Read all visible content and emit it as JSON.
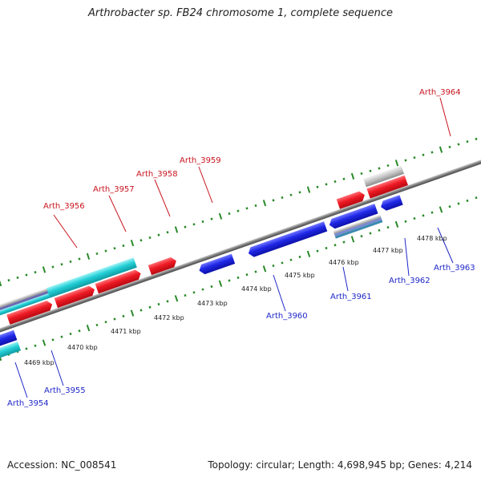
{
  "title": "Arthrobacter sp. FB24 chromosome 1, complete sequence",
  "footer": {
    "accession": "Accession: NC_008541",
    "stats": "Topology: circular; Length: 4,698,945 bp; Genes: 4,214"
  },
  "colors": {
    "forward_cds": "#e8141e",
    "reverse_cds": "#1f27e6",
    "forward_label": "#c8141e",
    "reverse_label": "#1f27c8",
    "rna_feature": "#22cfd6",
    "pseudo_feature": "#b4b4b4",
    "backbone": "#7a7a7a",
    "tick_marks": "#2a8a2a"
  },
  "genes": [
    {
      "id": "Arth_3954",
      "strand": "reverse",
      "type": "CDS"
    },
    {
      "id": "Arth_3955",
      "strand": "reverse",
      "type": "CDS"
    },
    {
      "id": "Arth_3956",
      "strand": "forward",
      "type": "CDS"
    },
    {
      "id": "Arth_3957",
      "strand": "forward",
      "type": "CDS"
    },
    {
      "id": "Arth_3958",
      "strand": "forward",
      "type": "CDS"
    },
    {
      "id": "Arth_3959",
      "strand": "forward",
      "type": "CDS"
    },
    {
      "id": "Arth_3960",
      "strand": "reverse",
      "type": "CDS"
    },
    {
      "id": "Arth_3961",
      "strand": "reverse",
      "type": "CDS"
    },
    {
      "id": "Arth_3962",
      "strand": "reverse",
      "type": "CDS"
    },
    {
      "id": "Arth_3963",
      "strand": "reverse",
      "type": "CDS"
    },
    {
      "id": "Arth_3964",
      "strand": "forward",
      "type": "CDS"
    }
  ],
  "scale_ticks": [
    "4469 kbp",
    "4470 kbp",
    "4471 kbp",
    "4472 kbp",
    "4473 kbp",
    "4474 kbp",
    "4475 kbp",
    "4476 kbp",
    "4477 kbp",
    "4478 kbp"
  ]
}
